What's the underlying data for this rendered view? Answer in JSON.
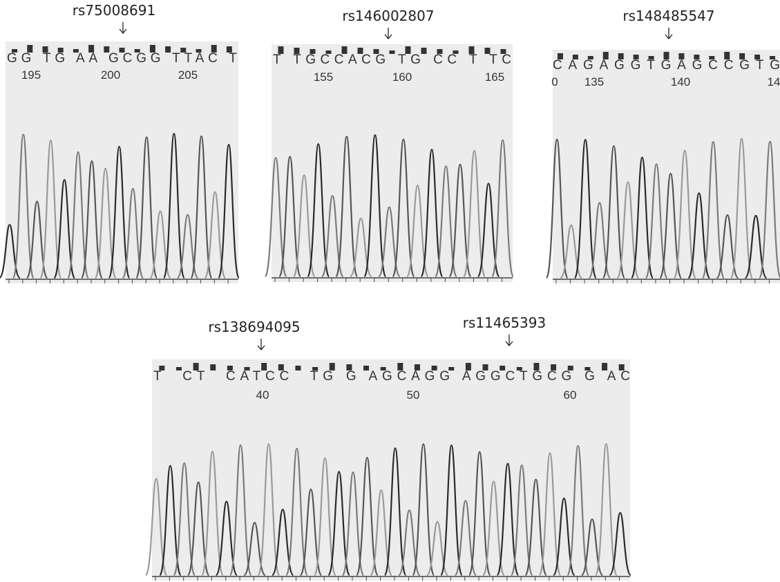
{
  "panels": [
    {
      "labels": [
        "rs75008691"
      ],
      "sequence": "GG TG AA GCGG TTAC T",
      "positions": [
        195,
        200,
        205
      ]
    },
    {
      "labels": [
        "rs146002807"
      ],
      "sequence": "T TGCCACG TG CC T TC",
      "positions": [
        155,
        160,
        165
      ]
    },
    {
      "labels": [
        "rs148485547"
      ],
      "sequence": "CAGAGGTGAGCCGTG",
      "positions": [
        "0",
        135,
        140,
        "14"
      ]
    },
    {
      "labels": [
        "rs138694095",
        "rs11465393"
      ],
      "sequence": "T  CT  CATCC  TG G AGCAGG AGGCTGCG G AC",
      "positions": [
        40,
        50,
        60
      ]
    }
  ]
}
